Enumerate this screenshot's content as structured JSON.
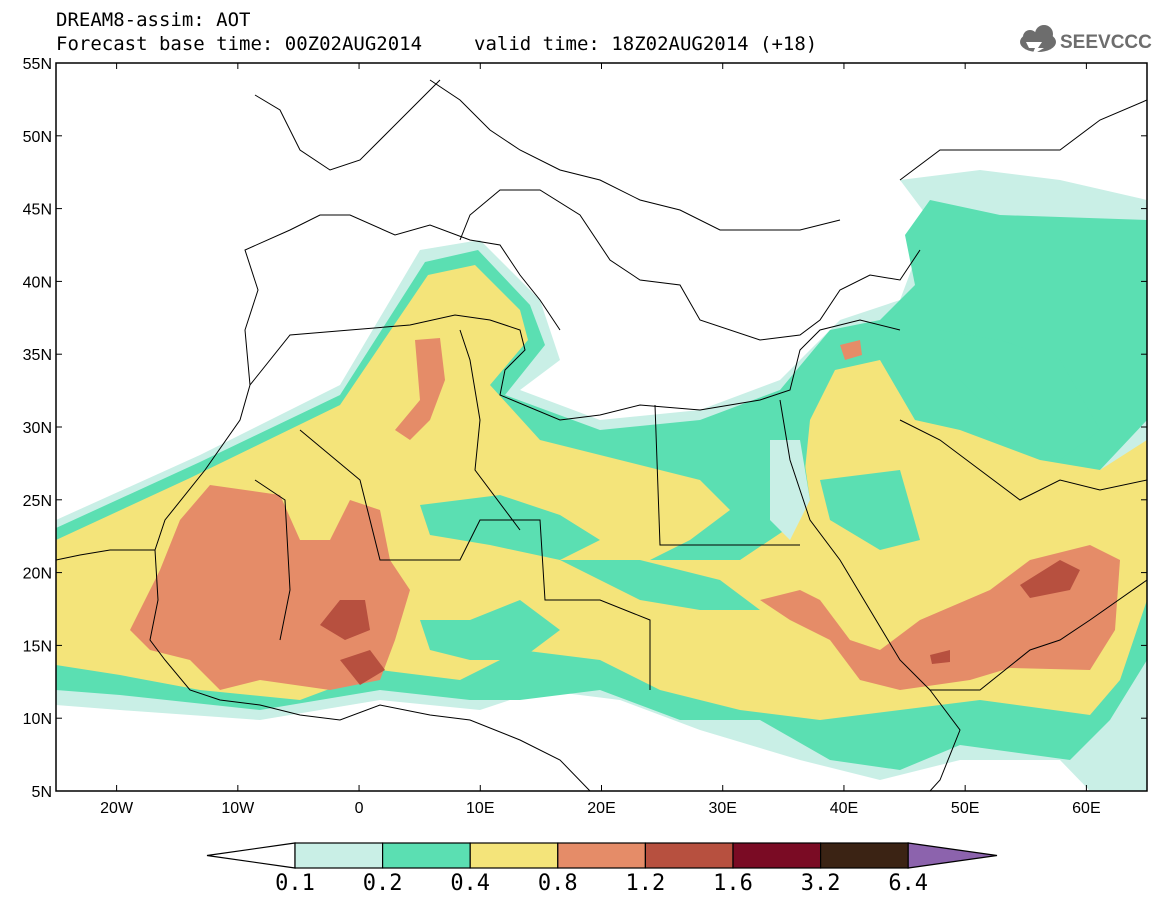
{
  "title": {
    "line1": "DREAM8-assim: AOT",
    "base_time": "Forecast base time: 00Z02AUG2014",
    "valid_time": "valid time: 18Z02AUG2014 (+18)"
  },
  "logo": {
    "text": "SEEVCCC",
    "icon": "cloud-icon"
  },
  "map": {
    "lon_ticks": [
      "20W",
      "10W",
      "0",
      "10E",
      "20E",
      "30E",
      "40E",
      "50E",
      "60E"
    ],
    "lat_ticks": [
      "55N",
      "50N",
      "45N",
      "40N",
      "35N",
      "30N",
      "25N",
      "20N",
      "15N",
      "10N",
      "5N"
    ],
    "lon_range": [
      -25,
      65
    ],
    "lat_range": [
      5,
      55
    ]
  },
  "colorbar": {
    "colors": [
      "#ffffff",
      "#c9efe6",
      "#5bdfb2",
      "#f4e47a",
      "#e58c68",
      "#b7503f",
      "#7a0b24",
      "#3b2314",
      "#8c63ad"
    ],
    "labels": [
      "0.1",
      "0.2",
      "0.4",
      "0.8",
      "1.2",
      "1.6",
      "3.2",
      "6.4"
    ]
  }
}
